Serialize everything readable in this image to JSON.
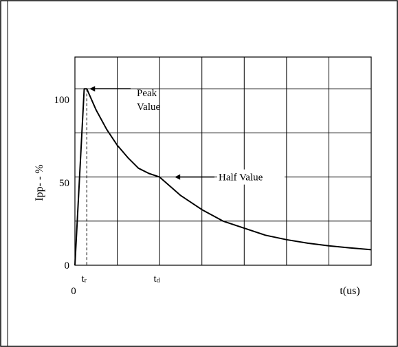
{
  "chart_data": {
    "type": "line",
    "title": "",
    "xlabel": "t(us)",
    "ylabel": "Ipp- - %",
    "x_origin_label": "0",
    "y_tick_labels": [
      "0",
      "50",
      "100"
    ],
    "y_ticks": [
      0,
      50,
      100
    ],
    "ylim": [
      0,
      118
    ],
    "xlim": [
      0,
      7
    ],
    "grid": true,
    "x_markers": [
      {
        "label": "tr",
        "main": "t",
        "sub": "r",
        "x": 0.28
      },
      {
        "label": "td",
        "main": "t",
        "sub": "d",
        "x": 2.0
      }
    ],
    "series": [
      {
        "x": [
          0,
          0.22,
          0.28,
          0.5,
          0.75,
          1.0,
          1.25,
          1.5,
          1.75,
          2.0,
          2.5,
          3.0,
          3.5,
          4.0,
          4.5,
          5.0,
          5.5,
          6.0,
          6.5,
          7.0
        ],
        "values": [
          0,
          100,
          100,
          88,
          77,
          68,
          61,
          55,
          52,
          50,
          39.5,
          31.5,
          25,
          21,
          17,
          14.5,
          12.5,
          11,
          9.8,
          8.8
        ]
      }
    ],
    "annotations": [
      {
        "id": "peak",
        "text_lines": [
          "Peak",
          "Value"
        ],
        "x": 0.28,
        "y": 100
      },
      {
        "id": "half",
        "text_lines": [
          "Half Value"
        ],
        "x": 2.0,
        "y": 50
      }
    ]
  }
}
